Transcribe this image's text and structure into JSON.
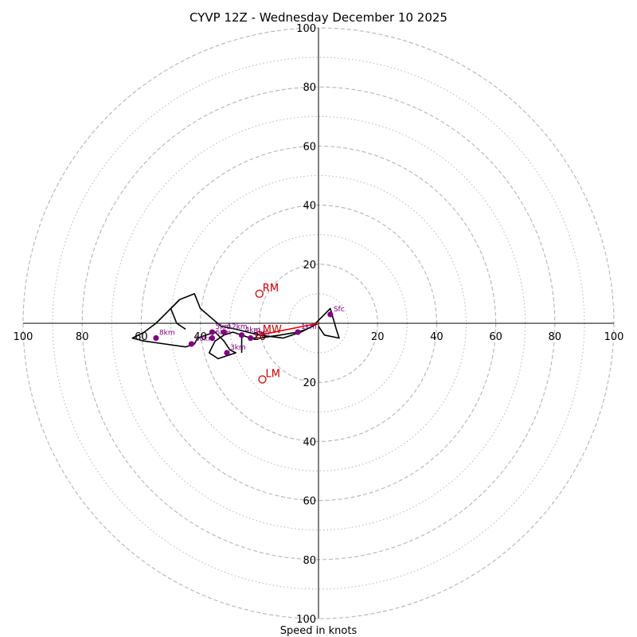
{
  "chart_data": {
    "type": "hodograph",
    "title": "CYVP 12Z - Wednesday December 10 2025",
    "xlabel": "Speed in knots",
    "rings_major": [
      20,
      40,
      60,
      80,
      100
    ],
    "rings_minor": [
      10,
      30,
      50,
      70,
      90
    ],
    "tick_labels": {
      "top": [
        "20",
        "40",
        "60",
        "80",
        "100"
      ],
      "bottom": [
        "20",
        "40",
        "60",
        "80",
        "100"
      ],
      "left": [
        "20",
        "40",
        "60",
        "80",
        "100"
      ],
      "right": [
        "20",
        "40",
        "60",
        "80",
        "100"
      ]
    },
    "xlim": [
      -100,
      100
    ],
    "ylim": [
      -100,
      100
    ],
    "trace": [
      [
        0,
        0
      ],
      [
        -6,
        -3
      ],
      [
        -12,
        -5
      ],
      [
        -20,
        -4
      ],
      [
        -28,
        -2
      ],
      [
        -33,
        -1
      ],
      [
        -40,
        5
      ],
      [
        -42,
        10
      ],
      [
        -47,
        8
      ],
      [
        -51,
        4
      ],
      [
        -55,
        0
      ],
      [
        -59,
        -3
      ],
      [
        -63,
        -5
      ],
      [
        -59,
        -6
      ],
      [
        -52,
        -7
      ],
      [
        -45,
        -8
      ],
      [
        -42,
        -7
      ],
      [
        -41,
        -5
      ],
      [
        -38,
        -4
      ],
      [
        -35,
        -3
      ],
      [
        -32,
        -6
      ],
      [
        -30,
        -9
      ],
      [
        -28,
        -10
      ],
      [
        -31,
        -11
      ],
      [
        -34,
        -12
      ],
      [
        -37,
        -10
      ],
      [
        -36,
        -8
      ],
      [
        -35,
        -6
      ],
      [
        -32,
        -4
      ],
      [
        -29,
        -3
      ],
      [
        -26,
        -4
      ],
      [
        -23,
        -5
      ],
      [
        -20,
        -5
      ],
      [
        -13,
        -4
      ],
      [
        -7,
        -3
      ],
      [
        -4,
        -2
      ],
      [
        -2,
        -1
      ],
      [
        2,
        3
      ],
      [
        4,
        5
      ],
      [
        6,
        -2
      ],
      [
        7,
        -5
      ],
      [
        2,
        -4
      ],
      [
        0,
        -1
      ]
    ],
    "vertical_line": [
      [
        -26,
        -4
      ],
      [
        -26,
        -10
      ]
    ],
    "spur": [
      [
        -47,
        8
      ],
      [
        -50,
        5
      ],
      [
        -48,
        0
      ],
      [
        -45,
        -2
      ]
    ],
    "height_markers": [
      {
        "label": "Sfc",
        "u": 4,
        "v": 3
      },
      {
        "label": "1km",
        "u": -7,
        "v": -3
      },
      {
        "label": "2km",
        "u": -23,
        "v": -5
      },
      {
        "label": "3km",
        "u": -31,
        "v": -10
      },
      {
        "label": "4km",
        "u": -26,
        "v": -4
      },
      {
        "label": "5km",
        "u": -36,
        "v": -3
      },
      {
        "label": "6km",
        "u": -36,
        "v": -5
      },
      {
        "label": "8km",
        "u": -55,
        "v": -5
      },
      {
        "label": "10km",
        "u": -43,
        "v": -7
      },
      {
        "label": "12km",
        "u": -32,
        "v": -3
      }
    ],
    "storm_motion": [
      {
        "label": "RM",
        "u": -20,
        "v": 10
      },
      {
        "label": "LM",
        "u": -19,
        "v": -19
      },
      {
        "label": "MW",
        "u": -20,
        "v": -4
      }
    ],
    "shear_vector": [
      [
        0,
        0
      ],
      [
        -20,
        -4
      ]
    ],
    "colors": {
      "trace": "#000000",
      "markers": "#800080",
      "storm": "#c80000",
      "shear": "#ff0000",
      "grid": "#b4b4b4",
      "axis": "#000000"
    }
  }
}
